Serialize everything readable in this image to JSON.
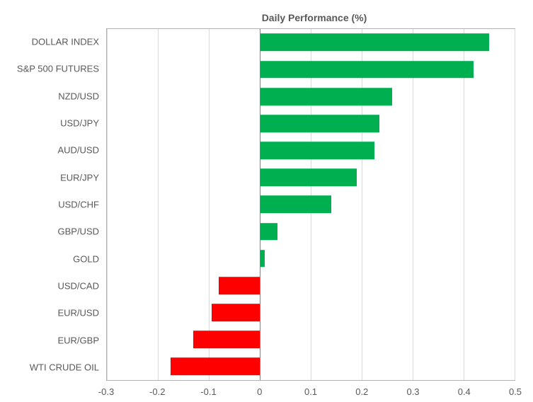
{
  "chart": {
    "type": "bar-horizontal",
    "title": "Daily Performance (%)",
    "title_fontsize": 14,
    "title_fontweight": "bold",
    "label_fontsize": 13,
    "tick_fontsize": 13,
    "font_color": "#595959",
    "xlim": [
      -0.3,
      0.5
    ],
    "xticks": [
      -0.3,
      -0.2,
      -0.1,
      0,
      0.1,
      0.2,
      0.3,
      0.4,
      0.5
    ],
    "xtick_labels": [
      "-0.3",
      "-0.2",
      "-0.1",
      "0",
      "0.1",
      "0.2",
      "0.3",
      "0.4",
      "0.5"
    ],
    "background_color": "#ffffff",
    "grid_color": "#d9d9d9",
    "border_color": "#b3b3b3",
    "zero_line_color": "#808080",
    "bar_width_ratio": 0.65,
    "colors": {
      "positive": "#00b050",
      "negative": "#ff0000"
    },
    "categories": [
      "DOLLAR INDEX",
      "S&P 500 FUTURES",
      "NZD/USD",
      "USD/JPY",
      "AUD/USD",
      "EUR/JPY",
      "USD/CHF",
      "GBP/USD",
      "GOLD",
      "USD/CAD",
      "EUR/USD",
      "EUR/GBP",
      "WTI CRUDE OIL"
    ],
    "values": [
      0.45,
      0.42,
      0.26,
      0.235,
      0.225,
      0.19,
      0.14,
      0.035,
      0.01,
      -0.08,
      -0.095,
      -0.13,
      -0.175
    ]
  }
}
